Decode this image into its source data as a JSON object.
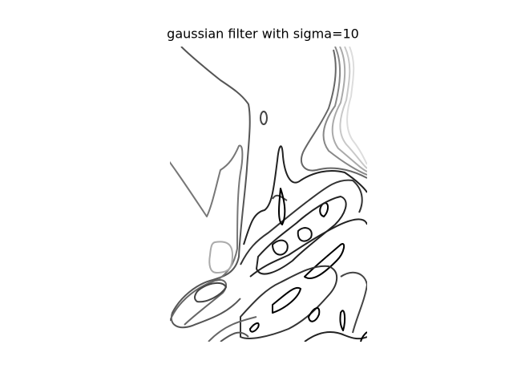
{
  "chart_data": {
    "type": "contour",
    "title": "gaussian filter with sigma=10"
  }
}
